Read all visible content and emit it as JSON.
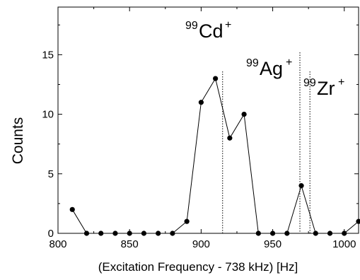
{
  "chart_data": {
    "type": "line",
    "xlabel": "(Excitation Frequency - 738 kHz) [Hz]",
    "ylabel": "Counts",
    "xlim": [
      800,
      1010
    ],
    "ylim": [
      0,
      19
    ],
    "x_ticks": [
      "800",
      "850",
      "900",
      "950",
      "1000"
    ],
    "y_ticks": [
      "0",
      "5",
      "10",
      "15"
    ],
    "series": [
      {
        "x": [
          810,
          820,
          830,
          840,
          850,
          860,
          870,
          880,
          890,
          900,
          910,
          920,
          930,
          940,
          950,
          960,
          970,
          980,
          990,
          1000,
          1010
        ],
        "y": [
          2,
          0,
          0,
          0,
          0,
          0,
          0,
          0,
          1,
          11,
          13,
          8,
          10,
          0,
          0,
          0,
          4,
          0,
          0,
          0,
          1
        ]
      }
    ],
    "reference_lines": [
      {
        "x": 915,
        "label_mass": "99",
        "label_ion": "Cd",
        "label_charge": "+"
      },
      {
        "x": 969,
        "label_mass": "99",
        "label_ion": "Ag",
        "label_charge": "+"
      },
      {
        "x": 976,
        "label_mass": "99",
        "label_ion": "Zr",
        "label_charge": "+"
      }
    ],
    "grid": false,
    "colors": {
      "line": "#000000",
      "marker": "#000000",
      "reference": "#000000"
    }
  }
}
